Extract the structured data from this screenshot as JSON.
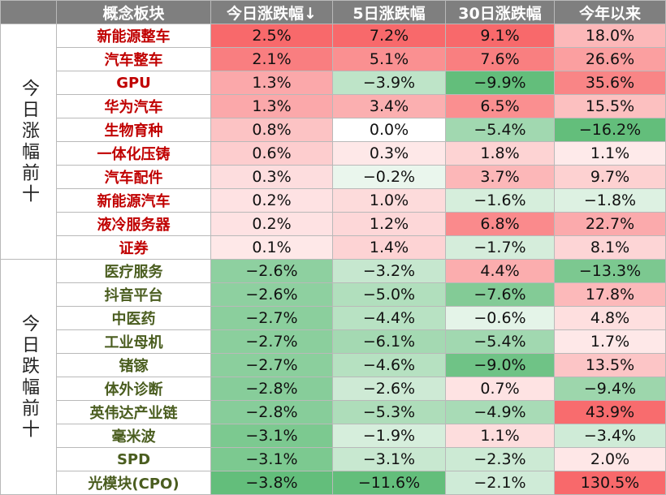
{
  "headers": [
    "概念板块",
    "今日涨跌幅↓",
    "5日涨跌幅",
    "30日涨跌幅",
    "今年以来"
  ],
  "groups": [
    {
      "label": "今日涨幅前十",
      "direction": "up",
      "rows": [
        {
          "name": "新能源整车",
          "d1": "2.5%",
          "d5": "7.2%",
          "d30": "9.1%",
          "ytd": "18.0%"
        },
        {
          "name": "汽车整车",
          "d1": "2.1%",
          "d5": "5.1%",
          "d30": "7.6%",
          "ytd": "26.6%"
        },
        {
          "name": "GPU",
          "d1": "1.3%",
          "d5": "−3.9%",
          "d30": "−9.9%",
          "ytd": "35.6%"
        },
        {
          "name": "华为汽车",
          "d1": "1.3%",
          "d5": "3.4%",
          "d30": "6.5%",
          "ytd": "15.5%"
        },
        {
          "name": "生物育种",
          "d1": "0.8%",
          "d5": "0.0%",
          "d30": "−5.4%",
          "ytd": "−16.2%"
        },
        {
          "name": "一体化压铸",
          "d1": "0.6%",
          "d5": "0.3%",
          "d30": "1.8%",
          "ytd": "1.1%"
        },
        {
          "name": "汽车配件",
          "d1": "0.3%",
          "d5": "−0.2%",
          "d30": "3.7%",
          "ytd": "9.7%"
        },
        {
          "name": "新能源汽车",
          "d1": "0.2%",
          "d5": "1.0%",
          "d30": "−1.6%",
          "ytd": "−1.8%"
        },
        {
          "name": "液冷服务器",
          "d1": "0.2%",
          "d5": "1.2%",
          "d30": "6.8%",
          "ytd": "22.7%"
        },
        {
          "name": "证券",
          "d1": "0.1%",
          "d5": "1.4%",
          "d30": "−1.7%",
          "ytd": "8.1%"
        }
      ]
    },
    {
      "label": "今日跌幅前十",
      "direction": "down",
      "rows": [
        {
          "name": "医疗服务",
          "d1": "−2.6%",
          "d5": "−3.2%",
          "d30": "4.4%",
          "ytd": "−13.3%"
        },
        {
          "name": "抖音平台",
          "d1": "−2.6%",
          "d5": "−5.0%",
          "d30": "−7.6%",
          "ytd": "17.8%"
        },
        {
          "name": "中医药",
          "d1": "−2.7%",
          "d5": "−4.4%",
          "d30": "−0.6%",
          "ytd": "4.8%"
        },
        {
          "name": "工业母机",
          "d1": "−2.7%",
          "d5": "−6.1%",
          "d30": "−5.4%",
          "ytd": "1.7%"
        },
        {
          "name": "锗镓",
          "d1": "−2.7%",
          "d5": "−4.6%",
          "d30": "−9.0%",
          "ytd": "13.5%"
        },
        {
          "name": "体外诊断",
          "d1": "−2.8%",
          "d5": "−2.6%",
          "d30": "0.7%",
          "ytd": "−9.4%"
        },
        {
          "name": "英伟达产业链",
          "d1": "−2.8%",
          "d5": "−5.3%",
          "d30": "−4.9%",
          "ytd": "43.9%"
        },
        {
          "name": "毫米波",
          "d1": "−3.1%",
          "d5": "−1.9%",
          "d30": "1.1%",
          "ytd": "−3.4%"
        },
        {
          "name": "SPD",
          "d1": "−3.1%",
          "d5": "−3.1%",
          "d30": "−2.3%",
          "ytd": "2.0%"
        },
        {
          "name": "光模块(CPO)",
          "d1": "−3.8%",
          "d5": "−11.6%",
          "d30": "−2.1%",
          "ytd": "130.5%"
        }
      ]
    }
  ],
  "colors": {
    "header_bg": "#7f7f7f",
    "up_text": "#c00000",
    "down_text": "#4a5d1f",
    "positive": "#f8696b",
    "negative": "#63be7b"
  }
}
